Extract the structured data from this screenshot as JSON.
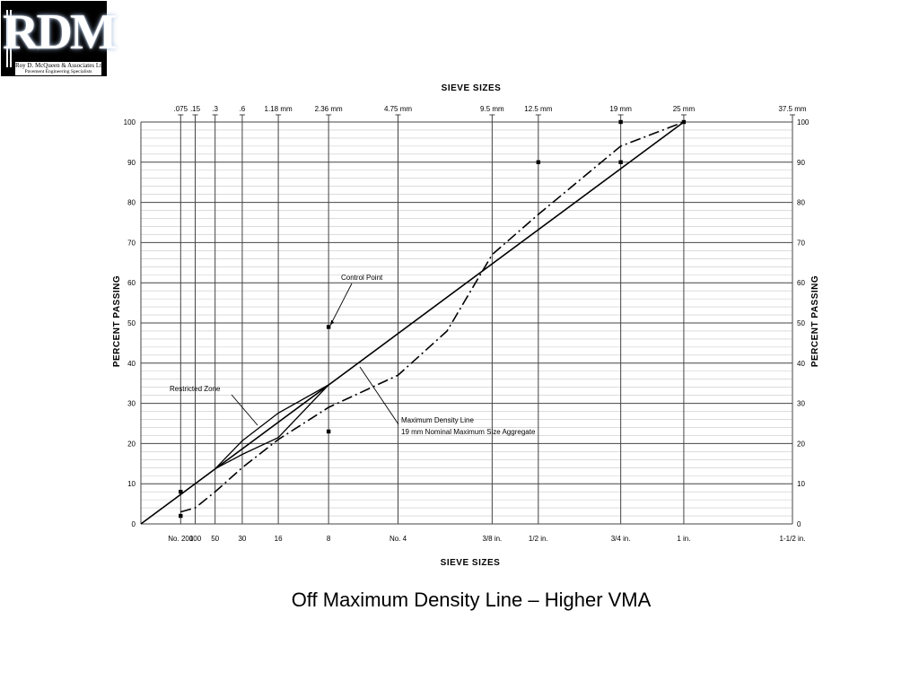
{
  "logo": {
    "mark": "RDM",
    "company": "Roy D. McQueen & Associates Ltd.",
    "tagline": "Pavement Engineering Specialists"
  },
  "caption": "Off Maximum Density Line – Higher VMA",
  "chart_data": {
    "type": "line",
    "title_top": "SIEVE SIZES",
    "xlabel": "SIEVE SIZES",
    "ylabel_left": "PERCENT PASSING",
    "ylabel_right": "PERCENT PASSING",
    "x_scale": "power-0.45",
    "x_unit": "mm",
    "xlim": [
      0,
      37.5
    ],
    "ylim": [
      0,
      100
    ],
    "y_ticks": [
      0,
      10,
      20,
      30,
      40,
      50,
      60,
      70,
      80,
      90,
      100
    ],
    "sieves": [
      {
        "mm": 0.075,
        "top": ".075",
        "bottom": "No. 200"
      },
      {
        "mm": 0.15,
        "top": ".15",
        "bottom": "100"
      },
      {
        "mm": 0.3,
        "top": ".3",
        "bottom": "50"
      },
      {
        "mm": 0.6,
        "top": ".6",
        "bottom": "30"
      },
      {
        "mm": 1.18,
        "top": "1.18 mm",
        "bottom": "16"
      },
      {
        "mm": 2.36,
        "top": "2.36 mm",
        "bottom": "8"
      },
      {
        "mm": 4.75,
        "top": "4.75 mm",
        "bottom": "No. 4"
      },
      {
        "mm": 9.5,
        "top": "9.5 mm",
        "bottom": "3/8 in."
      },
      {
        "mm": 12.5,
        "top": "12.5 mm",
        "bottom": "1/2 in."
      },
      {
        "mm": 19,
        "top": "19 mm",
        "bottom": "3/4 in."
      },
      {
        "mm": 25,
        "top": "25 mm",
        "bottom": "1 in."
      },
      {
        "mm": 37.5,
        "top": "37.5 mm",
        "bottom": "1-1/2 in."
      }
    ],
    "series": [
      {
        "role": "maximum-density-line",
        "style": "solid",
        "points": [
          [
            0,
            0
          ],
          [
            25,
            100
          ]
        ]
      },
      {
        "role": "gradation",
        "style": "dash-dot",
        "points": [
          [
            0.075,
            3
          ],
          [
            0.15,
            4
          ],
          [
            0.3,
            8
          ],
          [
            0.6,
            14
          ],
          [
            1.18,
            21
          ],
          [
            2.36,
            29
          ],
          [
            4.75,
            37
          ],
          [
            7.0,
            48
          ],
          [
            9.5,
            67
          ],
          [
            12.5,
            77
          ],
          [
            19,
            94
          ],
          [
            25,
            100
          ]
        ]
      }
    ],
    "restricted_zone": {
      "upper": [
        [
          0.3,
          13.7
        ],
        [
          0.6,
          20.7
        ],
        [
          1.18,
          27.6
        ],
        [
          2.36,
          34.6
        ]
      ],
      "lower": [
        [
          0.3,
          13.7
        ],
        [
          0.6,
          17.3
        ],
        [
          1.18,
          21.5
        ],
        [
          2.36,
          34.6
        ]
      ]
    },
    "control_points": [
      {
        "mm": 0.075,
        "min": 2,
        "max": 8
      },
      {
        "mm": 2.36,
        "min": 23,
        "max": 49
      },
      {
        "mm": 12.5,
        "max": 90
      },
      {
        "mm": 19,
        "min": 90,
        "max": 100
      },
      {
        "mm": 25,
        "min": 100
      }
    ],
    "annotations": [
      {
        "id": "control-point",
        "text": "Control Point"
      },
      {
        "id": "restricted-zone",
        "text": "Restricted Zone"
      },
      {
        "id": "mdl-1",
        "text": "Maximum Density Line"
      },
      {
        "id": "mdl-2",
        "text": "19 mm Nominal Maximum Size Aggregate"
      }
    ]
  }
}
